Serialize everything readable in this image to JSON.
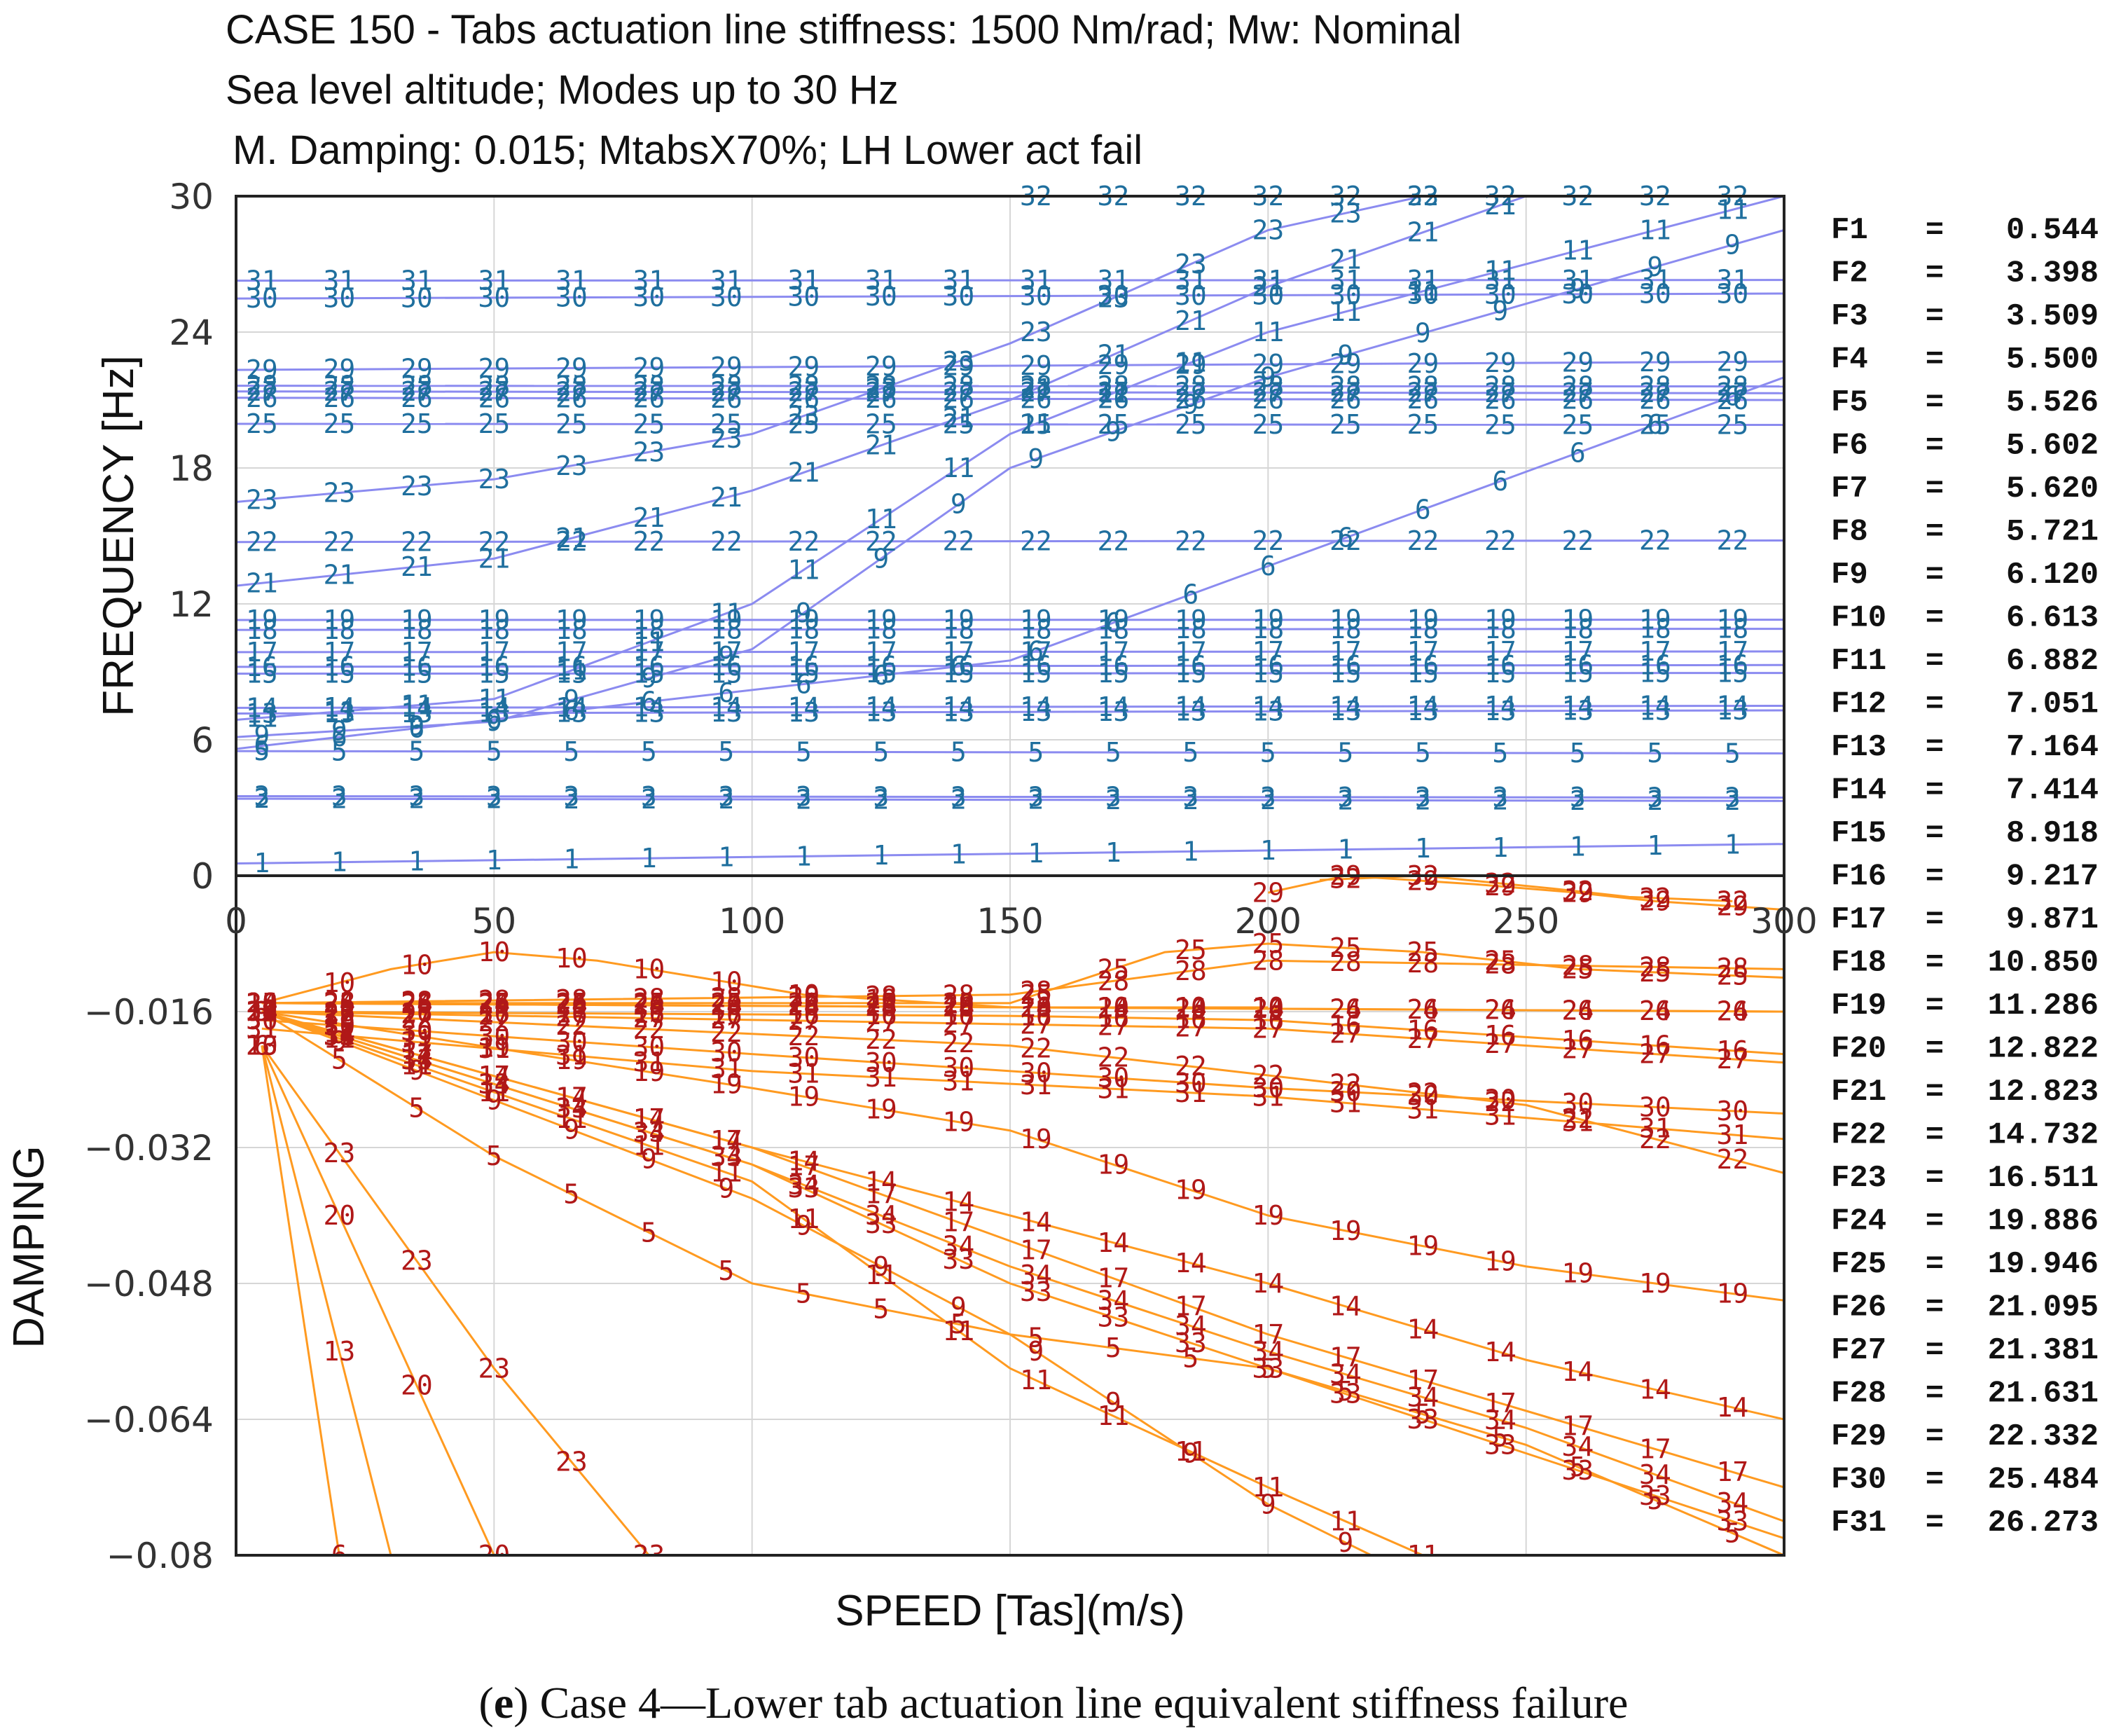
{
  "title": {
    "line1": "CASE 150 - Tabs actuation line stiffness: 1500 Nm/rad; Mw: Nominal",
    "line2": "Sea level altitude; Modes up to 30 Hz",
    "line3": "M. Damping: 0.015; MtabsX70%; LH Lower act fail"
  },
  "caption": {
    "prefix": "(",
    "letter": "e",
    "rest": ") Case 4—Lower tab actuation line equivalent stiffness failure"
  },
  "colors": {
    "frequency_lines": "#8b8bf0",
    "frequency_labels": "#1f6f9e",
    "damping_lines": "#ff9a20",
    "damping_labels": "#b01818",
    "grid": "#d6d6d6"
  },
  "frequency_list": [
    {
      "label": "F1",
      "eq": "=",
      "value": "0.544"
    },
    {
      "label": "F2",
      "eq": "=",
      "value": "3.398"
    },
    {
      "label": "F3",
      "eq": "=",
      "value": "3.509"
    },
    {
      "label": "F4",
      "eq": "=",
      "value": "5.500"
    },
    {
      "label": "F5",
      "eq": "=",
      "value": "5.526"
    },
    {
      "label": "F6",
      "eq": "=",
      "value": "5.602"
    },
    {
      "label": "F7",
      "eq": "=",
      "value": "5.620"
    },
    {
      "label": "F8",
      "eq": "=",
      "value": "5.721"
    },
    {
      "label": "F9",
      "eq": "=",
      "value": "6.120"
    },
    {
      "label": "F10",
      "eq": "=",
      "value": "6.613"
    },
    {
      "label": "F11",
      "eq": "=",
      "value": "6.882"
    },
    {
      "label": "F12",
      "eq": "=",
      "value": "7.051"
    },
    {
      "label": "F13",
      "eq": "=",
      "value": "7.164"
    },
    {
      "label": "F14",
      "eq": "=",
      "value": "7.414"
    },
    {
      "label": "F15",
      "eq": "=",
      "value": "8.918"
    },
    {
      "label": "F16",
      "eq": "=",
      "value": "9.217"
    },
    {
      "label": "F17",
      "eq": "=",
      "value": "9.871"
    },
    {
      "label": "F18",
      "eq": "=",
      "value": "10.850"
    },
    {
      "label": "F19",
      "eq": "=",
      "value": "11.286"
    },
    {
      "label": "F20",
      "eq": "=",
      "value": "12.822"
    },
    {
      "label": "F21",
      "eq": "=",
      "value": "12.823"
    },
    {
      "label": "F22",
      "eq": "=",
      "value": "14.732"
    },
    {
      "label": "F23",
      "eq": "=",
      "value": "16.511"
    },
    {
      "label": "F24",
      "eq": "=",
      "value": "19.886"
    },
    {
      "label": "F25",
      "eq": "=",
      "value": "19.946"
    },
    {
      "label": "F26",
      "eq": "=",
      "value": "21.095"
    },
    {
      "label": "F27",
      "eq": "=",
      "value": "21.381"
    },
    {
      "label": "F28",
      "eq": "=",
      "value": "21.631"
    },
    {
      "label": "F29",
      "eq": "=",
      "value": "22.332"
    },
    {
      "label": "F30",
      "eq": "=",
      "value": "25.484"
    },
    {
      "label": "F31",
      "eq": "=",
      "value": "26.273"
    }
  ],
  "chart_data": [
    {
      "type": "line",
      "title": "CASE 150 - Tabs actuation line stiffness: 1500 Nm/rad; Mw: Nominal",
      "xlabel": "SPEED [Tas](m/s)",
      "ylabel": "FREQUENCY [Hz]",
      "xlim": [
        0,
        300
      ],
      "ylim": [
        0,
        30
      ],
      "x_ticks": [
        "0",
        "50",
        "100",
        "150",
        "200",
        "250",
        "300"
      ],
      "y_ticks": [
        "0",
        "6",
        "12",
        "18",
        "24",
        "30"
      ],
      "grid": true,
      "label_x": [
        5,
        20,
        35,
        50,
        65,
        80,
        95,
        110,
        125,
        140,
        155,
        170,
        185,
        200,
        215,
        230,
        245,
        260,
        275,
        290
      ],
      "series": [
        {
          "name": "1",
          "x": [
            0,
            300
          ],
          "y": [
            0.54,
            1.4
          ]
        },
        {
          "name": "2",
          "x": [
            0,
            300
          ],
          "y": [
            3.4,
            3.3
          ]
        },
        {
          "name": "3",
          "x": [
            0,
            300
          ],
          "y": [
            3.51,
            3.45
          ]
        },
        {
          "name": "5",
          "x": [
            0,
            300
          ],
          "y": [
            5.5,
            5.4
          ]
        },
        {
          "name": "13",
          "x": [
            0,
            300
          ],
          "y": [
            7.16,
            7.3
          ]
        },
        {
          "name": "14",
          "x": [
            0,
            300
          ],
          "y": [
            7.41,
            7.5
          ]
        },
        {
          "name": "15",
          "x": [
            0,
            300
          ],
          "y": [
            8.92,
            8.95
          ]
        },
        {
          "name": "16",
          "x": [
            0,
            300
          ],
          "y": [
            9.22,
            9.3
          ]
        },
        {
          "name": "17",
          "x": [
            0,
            300
          ],
          "y": [
            9.87,
            9.9
          ]
        },
        {
          "name": "18",
          "x": [
            0,
            300
          ],
          "y": [
            10.85,
            10.9
          ]
        },
        {
          "name": "19",
          "x": [
            0,
            300
          ],
          "y": [
            11.29,
            11.3
          ]
        },
        {
          "name": "22",
          "x": [
            0,
            300
          ],
          "y": [
            14.73,
            14.8
          ]
        },
        {
          "name": "25",
          "x": [
            0,
            300
          ],
          "y": [
            19.95,
            19.9
          ]
        },
        {
          "name": "26",
          "x": [
            0,
            300
          ],
          "y": [
            21.1,
            21.0
          ]
        },
        {
          "name": "27",
          "x": [
            0,
            300
          ],
          "y": [
            21.38,
            21.3
          ]
        },
        {
          "name": "28",
          "x": [
            0,
            300
          ],
          "y": [
            21.63,
            21.6
          ]
        },
        {
          "name": "29",
          "x": [
            0,
            300
          ],
          "y": [
            22.33,
            22.7
          ]
        },
        {
          "name": "30",
          "x": [
            0,
            300
          ],
          "y": [
            25.48,
            25.7
          ]
        },
        {
          "name": "31",
          "x": [
            0,
            300
          ],
          "y": [
            26.27,
            26.3
          ]
        },
        {
          "name": "6",
          "x": [
            0,
            150,
            300
          ],
          "y": [
            5.6,
            9.5,
            22.0
          ]
        },
        {
          "name": "9",
          "x": [
            0,
            50,
            100,
            150,
            200,
            300
          ],
          "y": [
            6.12,
            6.8,
            10.0,
            18.0,
            22.0,
            28.5
          ]
        },
        {
          "name": "11",
          "x": [
            0,
            50,
            100,
            150,
            200,
            300
          ],
          "y": [
            6.88,
            7.8,
            12.0,
            19.5,
            24.0,
            30.0
          ]
        },
        {
          "name": "23",
          "x": [
            0,
            50,
            100,
            150,
            200,
            230
          ],
          "y": [
            16.5,
            17.5,
            19.5,
            23.5,
            28.5,
            30.0
          ]
        },
        {
          "name": "21",
          "x": [
            0,
            50,
            100,
            150,
            200,
            250
          ],
          "y": [
            12.8,
            14.0,
            17.0,
            21.0,
            26.0,
            30.0
          ]
        },
        {
          "name": "32",
          "x": [
            150,
            300
          ],
          "y": [
            30.0,
            30.0
          ]
        }
      ]
    },
    {
      "type": "line",
      "xlabel": "SPEED [Tas](m/s)",
      "ylabel": "DAMPING",
      "xlim": [
        0,
        300
      ],
      "ylim": [
        -0.08,
        0
      ],
      "x_ticks": [
        "0",
        "50",
        "100",
        "150",
        "200",
        "250",
        "300"
      ],
      "y_ticks": [
        "0",
        "−0.016",
        "−0.032",
        "−0.048",
        "−0.064",
        "−0.08"
      ],
      "grid": true,
      "series": [
        {
          "name": "10",
          "x": [
            5,
            30,
            50,
            70,
            90,
            110,
            150,
            200
          ],
          "y": [
            -0.015,
            -0.011,
            -0.009,
            -0.01,
            -0.012,
            -0.014,
            -0.0155,
            -0.0155
          ]
        },
        {
          "name": "25",
          "x": [
            5,
            150,
            180,
            200,
            230,
            260,
            300
          ],
          "y": [
            -0.015,
            -0.015,
            -0.009,
            -0.008,
            -0.009,
            -0.011,
            -0.012
          ]
        },
        {
          "name": "28",
          "x": [
            5,
            150,
            200,
            300
          ],
          "y": [
            -0.015,
            -0.014,
            -0.01,
            -0.011
          ]
        },
        {
          "name": "26",
          "x": [
            5,
            300
          ],
          "y": [
            -0.015,
            -0.016
          ]
        },
        {
          "name": "24",
          "x": [
            5,
            300
          ],
          "y": [
            -0.015,
            -0.016
          ]
        },
        {
          "name": "16",
          "x": [
            5,
            150,
            200,
            300
          ],
          "y": [
            -0.016,
            -0.0165,
            -0.017,
            -0.021
          ]
        },
        {
          "name": "27",
          "x": [
            5,
            200,
            300
          ],
          "y": [
            -0.016,
            -0.018,
            -0.022
          ]
        },
        {
          "name": "22",
          "x": [
            5,
            150,
            250,
            300
          ],
          "y": [
            -0.016,
            -0.02,
            -0.027,
            -0.035
          ]
        },
        {
          "name": "30",
          "x": [
            5,
            100,
            200,
            300
          ],
          "y": [
            -0.017,
            -0.021,
            -0.025,
            -0.028
          ]
        },
        {
          "name": "31",
          "x": [
            5,
            100,
            200,
            300
          ],
          "y": [
            -0.018,
            -0.023,
            -0.026,
            -0.031
          ]
        },
        {
          "name": "19",
          "x": [
            5,
            100,
            150,
            200,
            250,
            300
          ],
          "y": [
            -0.016,
            -0.025,
            -0.03,
            -0.04,
            -0.046,
            -0.05
          ]
        },
        {
          "name": "14",
          "x": [
            5,
            100,
            150,
            200,
            250,
            300
          ],
          "y": [
            -0.016,
            -0.032,
            -0.04,
            -0.048,
            -0.057,
            -0.064
          ]
        },
        {
          "name": "17",
          "x": [
            5,
            100,
            150,
            200,
            250,
            300
          ],
          "y": [
            -0.016,
            -0.032,
            -0.043,
            -0.054,
            -0.063,
            -0.072
          ]
        },
        {
          "name": "34",
          "x": [
            5,
            100,
            150,
            200,
            250,
            300
          ],
          "y": [
            -0.016,
            -0.034,
            -0.046,
            -0.056,
            -0.065,
            -0.076
          ]
        },
        {
          "name": "33",
          "x": [
            5,
            100,
            150,
            200,
            250,
            300
          ],
          "y": [
            -0.016,
            -0.034,
            -0.048,
            -0.058,
            -0.068,
            -0.078
          ]
        },
        {
          "name": "5",
          "x": [
            5,
            50,
            100,
            150,
            200,
            250,
            300
          ],
          "y": [
            -0.016,
            -0.033,
            -0.048,
            -0.054,
            -0.058,
            -0.067,
            -0.08
          ]
        },
        {
          "name": "11",
          "x": [
            5,
            100,
            150,
            200,
            230
          ],
          "y": [
            -0.016,
            -0.036,
            -0.058,
            -0.072,
            -0.08
          ]
        },
        {
          "name": "9",
          "x": [
            5,
            100,
            150,
            200,
            220
          ],
          "y": [
            -0.016,
            -0.038,
            -0.054,
            -0.074,
            -0.08
          ]
        },
        {
          "name": "23",
          "x": [
            5,
            50,
            80
          ],
          "y": [
            -0.02,
            -0.058,
            -0.08
          ]
        },
        {
          "name": "20",
          "x": [
            5,
            50
          ],
          "y": [
            -0.02,
            -0.08
          ]
        },
        {
          "name": "13",
          "x": [
            5,
            30
          ],
          "y": [
            -0.02,
            -0.08
          ]
        },
        {
          "name": "6",
          "x": [
            5,
            20
          ],
          "y": [
            -0.02,
            -0.08
          ]
        },
        {
          "name": "29",
          "x": [
            200,
            215,
            240,
            260,
            275,
            300
          ],
          "y": [
            -0.002,
            0.0,
            -0.001,
            -0.002,
            -0.003,
            -0.004
          ]
        },
        {
          "name": "32",
          "x": [
            210,
            230,
            255,
            270,
            290
          ],
          "y": [
            -0.0005,
            0.0,
            -0.0015,
            -0.0025,
            -0.003
          ]
        }
      ]
    }
  ]
}
